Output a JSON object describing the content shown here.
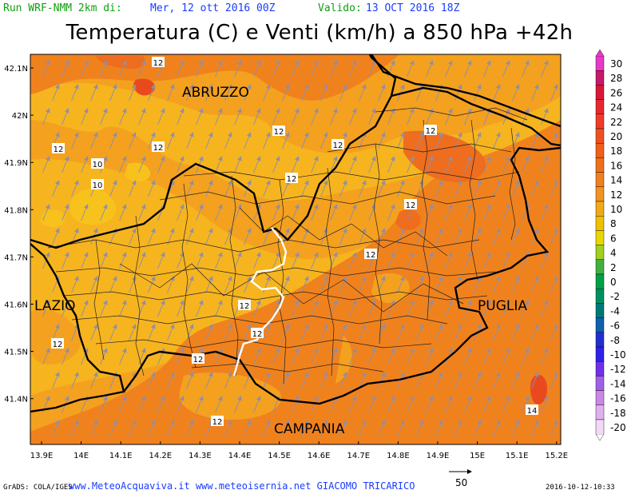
{
  "header": {
    "run": "Run WRF-NMM 2km di:",
    "init": "Mer, 12 ott 2016 00Z",
    "valid_label": "Valido:",
    "valid": "13 OCT 2016 18Z",
    "title": "Temperatura (C) e Venti (km/h) a 850 hPa +42h"
  },
  "regions": {
    "abruzzo": "ABRUZZO",
    "lazio": "LAZIO",
    "puglia": "PUGLIA",
    "campania": "CAMPANIA"
  },
  "x_ticks": [
    "13.9E",
    "14E",
    "14.1E",
    "14.2E",
    "14.3E",
    "14.4E",
    "14.5E",
    "14.6E",
    "14.7E",
    "14.8E",
    "14.9E",
    "15E",
    "15.1E",
    "15.2E"
  ],
  "y_ticks": [
    "42.1N",
    "42N",
    "41.9N",
    "41.8N",
    "41.7N",
    "41.6N",
    "41.5N",
    "41.4N"
  ],
  "contour_labels": [
    "12",
    "12",
    "12",
    "12",
    "10",
    "10",
    "12",
    "12",
    "12",
    "12",
    "12",
    "12",
    "12",
    "12",
    "12",
    "12",
    "14"
  ],
  "colorbar": {
    "values": [
      "30",
      "28",
      "26",
      "24",
      "22",
      "20",
      "18",
      "16",
      "14",
      "12",
      "10",
      "8",
      "6",
      "4",
      "2",
      "0",
      "-2",
      "-4",
      "-6",
      "-8",
      "-10",
      "-12",
      "-14",
      "-16",
      "-18",
      "-20"
    ],
    "colors": [
      "#e838c8",
      "#c81868",
      "#d81838",
      "#e82830",
      "#f03c28",
      "#f05020",
      "#f06018",
      "#f0701a",
      "#f08020",
      "#f09420",
      "#f0aa18",
      "#f0c000",
      "#e8d800",
      "#a0d020",
      "#40b040",
      "#00a048",
      "#009060",
      "#007878",
      "#1060b0",
      "#2030d0",
      "#3020e8",
      "#7030e8",
      "#a060e8",
      "#c888e8",
      "#e0b0f0",
      "#f4d8f8"
    ]
  },
  "wind_vector": {
    "label": "50"
  },
  "footer": {
    "grads": "GrADS: COLA/IGES",
    "credits": "www.MeteoAcquaviva.it www.meteoisernia.net GIACOMO TRICARICO",
    "timestamp": "2016-10-12-10:33"
  },
  "colors": {
    "band_10": "#f6b41f",
    "band_10_light": "#f8c21c",
    "band_12": "#f4a11f",
    "band_14": "#f0821e",
    "band_16": "#ee6d1f",
    "header_green": "#10a010",
    "header_blue": "#1a3cff",
    "vector": "#8f8fa8",
    "border_white": "#ffffff"
  }
}
